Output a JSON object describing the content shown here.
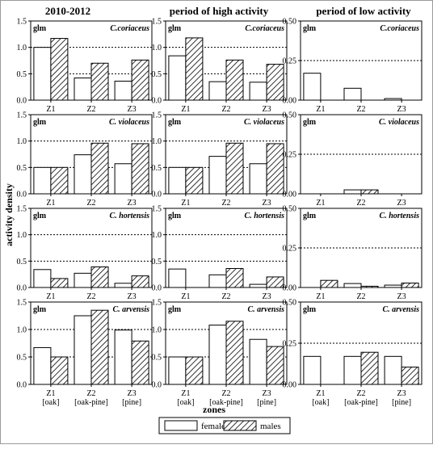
{
  "figure": {
    "column_titles": [
      "2010-2012",
      "period of high activity",
      "period of low activity"
    ],
    "ylabel": "activity density",
    "xlabel": "zones",
    "legend": {
      "females": "females",
      "males": "males"
    },
    "colors": {
      "females": "#ffffff",
      "males": "#ffffff",
      "stroke": "#000000",
      "dotted": "#000000"
    }
  },
  "chart_data": [
    {
      "type": "bar",
      "row": 0,
      "col": 0,
      "label": "glm",
      "species": "C.coriaceus",
      "categories": [
        "Z1",
        "Z2",
        "Z3"
      ],
      "ylim": [
        0,
        1.5
      ],
      "yticks": [
        "0.0",
        "0.5",
        "1.0",
        "1.5"
      ],
      "dotted": [
        0.5,
        1.0
      ],
      "series": [
        {
          "name": "females",
          "values": [
            1.0,
            0.42,
            0.36
          ]
        },
        {
          "name": "males",
          "values": [
            1.17,
            0.7,
            0.76
          ]
        }
      ]
    },
    {
      "type": "bar",
      "row": 0,
      "col": 1,
      "label": "glm",
      "species": "C.coriaceus",
      "categories": [
        "Z1",
        "Z2",
        "Z3"
      ],
      "ylim": [
        0,
        1.5
      ],
      "yticks": [
        "0.0",
        "0.5",
        "1.0",
        "1.5"
      ],
      "dotted": [
        0.5,
        1.0
      ],
      "series": [
        {
          "name": "females",
          "values": [
            0.84,
            0.35,
            0.34
          ]
        },
        {
          "name": "males",
          "values": [
            1.18,
            0.76,
            0.68
          ]
        }
      ]
    },
    {
      "type": "bar",
      "row": 0,
      "col": 2,
      "label": "glm",
      "species": "C.coriaceus",
      "categories": [
        "Z1",
        "Z2",
        "Z3"
      ],
      "ylim": [
        0,
        0.5
      ],
      "yticks": [
        "0.00",
        "0.25",
        "0.50"
      ],
      "dotted": [
        0.25
      ],
      "series": [
        {
          "name": "females",
          "values": [
            0.17,
            0.075,
            0.01
          ]
        },
        {
          "name": "males",
          "values": [
            0,
            0,
            0
          ]
        }
      ]
    },
    {
      "type": "bar",
      "row": 1,
      "col": 0,
      "label": "glm",
      "species": "C. violaceus",
      "categories": [
        "Z1",
        "Z2",
        "Z3"
      ],
      "ylim": [
        0,
        1.5
      ],
      "yticks": [
        "0.0",
        "0.5",
        "1.0",
        "1.5"
      ],
      "dotted": [
        0.5,
        1.0
      ],
      "series": [
        {
          "name": "females",
          "values": [
            0.5,
            0.74,
            0.57
          ]
        },
        {
          "name": "males",
          "values": [
            0.5,
            0.96,
            0.95
          ]
        }
      ]
    },
    {
      "type": "bar",
      "row": 1,
      "col": 1,
      "label": "glm",
      "species": "C. violaceus",
      "categories": [
        "Z1",
        "Z2",
        "Z3"
      ],
      "ylim": [
        0,
        1.5
      ],
      "yticks": [
        "0.0",
        "0.5",
        "1.0",
        "1.5"
      ],
      "dotted": [
        0.5,
        1.0
      ],
      "series": [
        {
          "name": "females",
          "values": [
            0.5,
            0.71,
            0.57
          ]
        },
        {
          "name": "males",
          "values": [
            0.5,
            0.96,
            0.95
          ]
        }
      ]
    },
    {
      "type": "bar",
      "row": 1,
      "col": 2,
      "label": "glm",
      "species": "C. violaceus",
      "categories": [
        "Z1",
        "Z2",
        "Z3"
      ],
      "ylim": [
        0,
        0.5
      ],
      "yticks": [
        "0.00",
        "0.25",
        "0.50"
      ],
      "dotted": [
        0.25
      ],
      "series": [
        {
          "name": "females",
          "values": [
            0,
            0.025,
            0
          ]
        },
        {
          "name": "males",
          "values": [
            0,
            0.025,
            0
          ]
        }
      ]
    },
    {
      "type": "bar",
      "row": 2,
      "col": 0,
      "label": "glm",
      "species": "C. hortensis",
      "categories": [
        "Z1",
        "Z2",
        "Z3"
      ],
      "ylim": [
        0,
        1.5
      ],
      "yticks": [
        "0.0",
        "0.5",
        "1.0",
        "1.5"
      ],
      "dotted": [
        0.5,
        1.0
      ],
      "series": [
        {
          "name": "females",
          "values": [
            0.34,
            0.27,
            0.08
          ]
        },
        {
          "name": "males",
          "values": [
            0.17,
            0.39,
            0.22
          ]
        }
      ]
    },
    {
      "type": "bar",
      "row": 2,
      "col": 1,
      "label": "glm",
      "species": "C. hortensis",
      "categories": [
        "Z1",
        "Z2",
        "Z3"
      ],
      "ylim": [
        0,
        1.5
      ],
      "yticks": [
        "0.0",
        "0.5",
        "1.0",
        "1.5"
      ],
      "dotted": [
        0.5,
        1.0
      ],
      "series": [
        {
          "name": "females",
          "values": [
            0.35,
            0.24,
            0.06
          ]
        },
        {
          "name": "males",
          "values": [
            0,
            0.36,
            0.2
          ]
        }
      ]
    },
    {
      "type": "bar",
      "row": 2,
      "col": 2,
      "label": "glm",
      "species": "C. hortensis",
      "categories": [
        "Z1",
        "Z2",
        "Z3"
      ],
      "ylim": [
        0,
        0.5
      ],
      "yticks": [
        "0.00",
        "0.25",
        "0.50"
      ],
      "dotted": [
        0.25
      ],
      "series": [
        {
          "name": "females",
          "values": [
            0,
            0.025,
            0.015
          ]
        },
        {
          "name": "males",
          "values": [
            0.045,
            0.008,
            0.028
          ]
        }
      ]
    },
    {
      "type": "bar",
      "row": 3,
      "col": 0,
      "label": "glm",
      "species": "C. arvensis",
      "categories": [
        "Z1\n[oak]",
        "Z2\n[oak-pine]",
        "Z3\n[pine]"
      ],
      "ylim": [
        0,
        1.5
      ],
      "yticks": [
        "0.0",
        "0.5",
        "1.0",
        "1.5"
      ],
      "dotted": [
        0.5,
        1.0
      ],
      "series": [
        {
          "name": "females",
          "values": [
            0.67,
            1.25,
            0.99
          ]
        },
        {
          "name": "males",
          "values": [
            0.5,
            1.35,
            0.79
          ]
        }
      ]
    },
    {
      "type": "bar",
      "row": 3,
      "col": 1,
      "label": "glm",
      "species": "C. arvensis",
      "categories": [
        "Z1\n[oak]",
        "Z2\n[oak-pine]",
        "Z3\n[pine]"
      ],
      "ylim": [
        0,
        1.5
      ],
      "yticks": [
        "0.0",
        "0.5",
        "1.0",
        "1.5"
      ],
      "dotted": [
        0.5,
        1.0
      ],
      "series": [
        {
          "name": "females",
          "values": [
            0.5,
            1.08,
            0.82
          ]
        },
        {
          "name": "males",
          "values": [
            0.5,
            1.15,
            0.69
          ]
        }
      ]
    },
    {
      "type": "bar",
      "row": 3,
      "col": 2,
      "label": "glm",
      "species": "C. arvensis",
      "categories": [
        "Z1\n[oak]",
        "Z2\n[oak-pine]",
        "Z3\n[pine]"
      ],
      "ylim": [
        0,
        0.5
      ],
      "yticks": [
        "0.00",
        "0.25",
        "0.50"
      ],
      "dotted": [
        0.25
      ],
      "series": [
        {
          "name": "females",
          "values": [
            0.17,
            0.17,
            0.17
          ]
        },
        {
          "name": "males",
          "values": [
            0,
            0.195,
            0.105
          ]
        }
      ]
    }
  ]
}
